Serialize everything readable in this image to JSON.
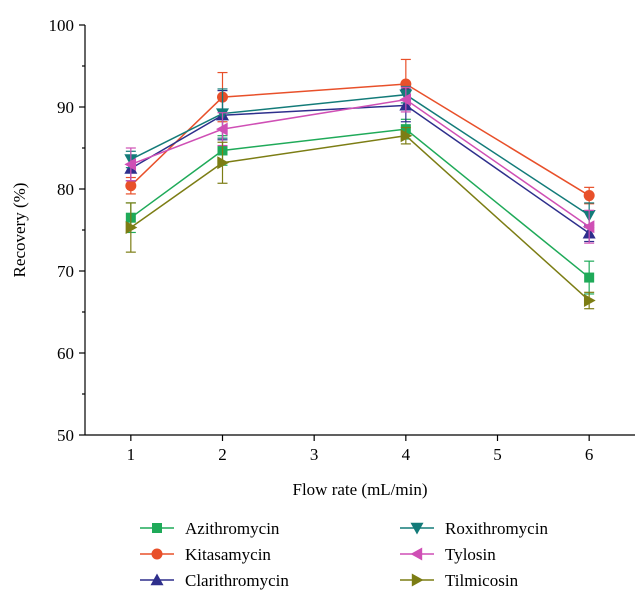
{
  "chart_data": {
    "type": "line",
    "xlabel": "Flow rate (mL/min)",
    "ylabel": "Recovery (%)",
    "xlim": [
      0.5,
      6.5
    ],
    "ylim": [
      50,
      100
    ],
    "x_ticks": [
      "1",
      "2",
      "3",
      "4",
      "5",
      "6"
    ],
    "y_ticks": [
      "50",
      "60",
      "70",
      "80",
      "90",
      "100"
    ],
    "x": [
      1,
      2,
      4,
      6
    ],
    "error_bars": true,
    "grid": false,
    "legend_position": "bottom",
    "series": [
      {
        "name": "Azithromycin",
        "color": "#1faa59",
        "marker": "square",
        "values": [
          76.5,
          84.7,
          87.3,
          69.2
        ],
        "errors": [
          1.8,
          1.8,
          1.2,
          2.0
        ]
      },
      {
        "name": "Kitasamycin",
        "color": "#e8502a",
        "marker": "circle",
        "values": [
          80.4,
          91.2,
          92.8,
          79.2
        ],
        "errors": [
          1.0,
          3.0,
          3.0,
          1.0
        ]
      },
      {
        "name": "Clarithromycin",
        "color": "#2e2f8c",
        "marker": "triangle-up",
        "values": [
          82.5,
          89.0,
          90.2,
          74.6
        ],
        "errors": [
          1.5,
          3.0,
          2.0,
          1.0
        ]
      },
      {
        "name": "Roxithromycin",
        "color": "#137b79",
        "marker": "triangle-down",
        "values": [
          83.6,
          89.2,
          91.5,
          76.8
        ],
        "errors": [
          1.0,
          3.0,
          1.0,
          1.5
        ]
      },
      {
        "name": "Tylosin",
        "color": "#cf4fb5",
        "marker": "triangle-left",
        "values": [
          83.0,
          87.3,
          90.9,
          75.4
        ],
        "errors": [
          2.0,
          2.0,
          1.5,
          2.0
        ]
      },
      {
        "name": "Tilmicosin",
        "color": "#7c7d14",
        "marker": "triangle-right",
        "values": [
          75.3,
          83.2,
          86.5,
          66.4
        ],
        "errors": [
          3.0,
          2.5,
          1.0,
          1.0
        ]
      }
    ]
  }
}
